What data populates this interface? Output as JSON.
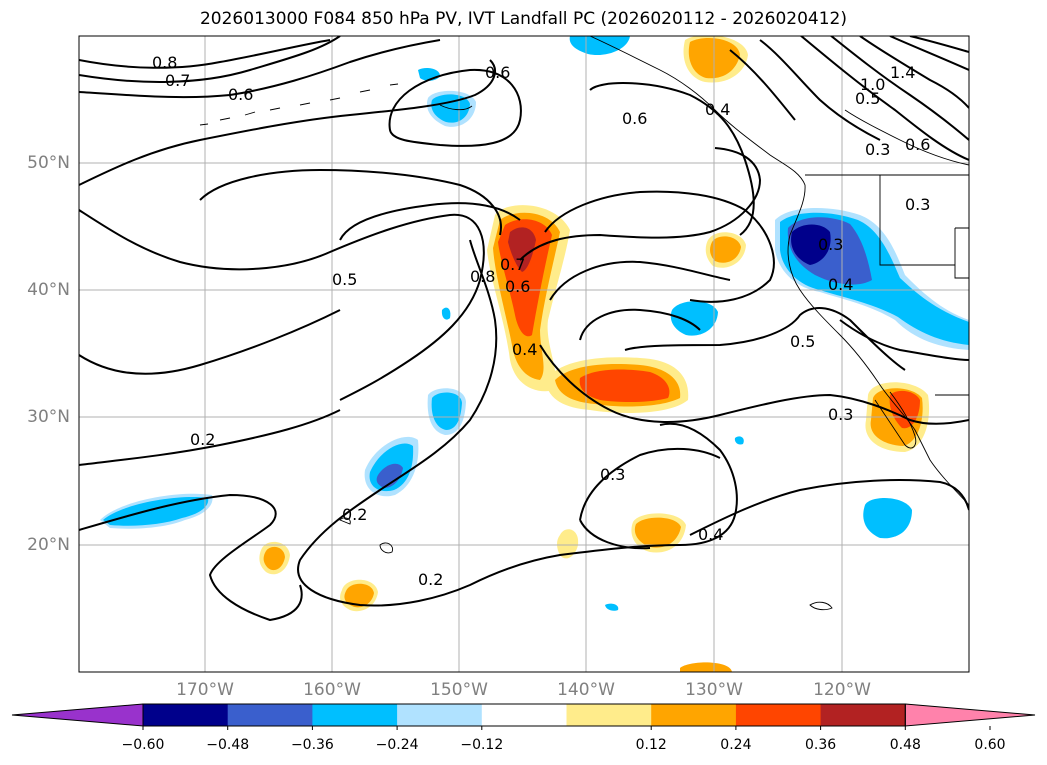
{
  "title": "2026013000 F084 850 hPa PV, IVT Landfall PC (2026020112 - 2026020412)",
  "map": {
    "lat_labels": [
      "50°N",
      "40°N",
      "30°N",
      "20°N"
    ],
    "lon_labels": [
      "170°W",
      "160°W",
      "150°W",
      "140°W",
      "130°W",
      "120°W"
    ],
    "gridlines": true,
    "contour_labels": [
      "0.8",
      "0.7",
      "0.6",
      "0.6",
      "0.6",
      "0.4",
      "1.4",
      "1.0",
      "0.5",
      "0.3",
      "0.6",
      "0.3",
      "0.3",
      "0.5",
      "0.8",
      "0.7",
      "0.6",
      "0.4",
      "0.4",
      "0.5",
      "0.3",
      "0.2",
      "0.3",
      "0.2",
      "0.4",
      "0.2"
    ]
  },
  "colorbar": {
    "ticks": [
      "−0.60",
      "−0.48",
      "−0.36",
      "−0.24",
      "−0.12",
      "0.12",
      "0.24",
      "0.36",
      "0.48",
      "0.60"
    ],
    "colors": [
      "#9932cc",
      "#00008b",
      "#3a5fcd",
      "#00bfff",
      "#b0e2ff",
      "#ffffff",
      "#ffec8b",
      "#ffa500",
      "#ff4500",
      "#b22222",
      "#ff82ab"
    ]
  },
  "fill_colors": {
    "blue_light": "#00bfff",
    "blue_pale": "#b0e2ff",
    "blue_mid": "#3a5fcd",
    "blue_dark": "#00008b",
    "yellow": "#ffec8b",
    "orange": "#ffa500",
    "red_orange": "#ff4500",
    "dark_red": "#b22222"
  }
}
